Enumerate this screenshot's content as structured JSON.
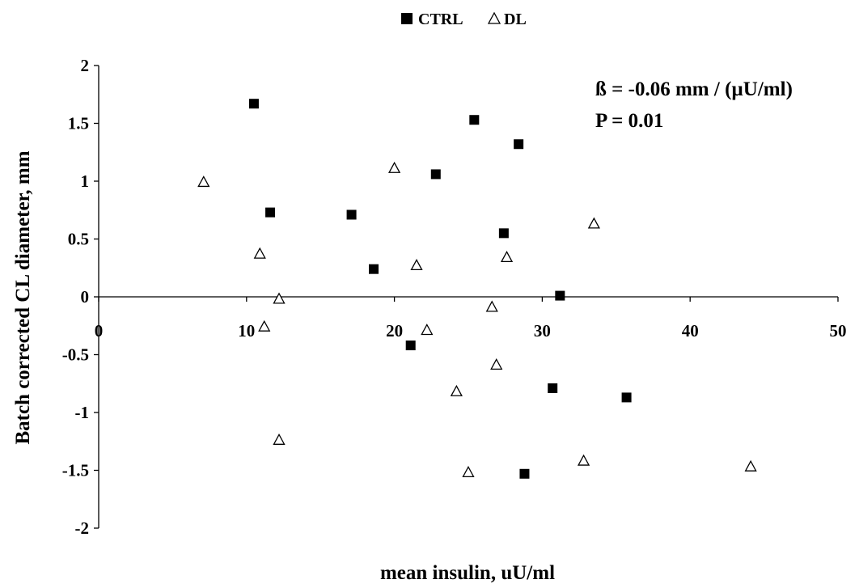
{
  "chart_data": {
    "type": "scatter",
    "xlabel": "mean insulin, uU/ml",
    "ylabel": "Batch corrected CL diameter, mm",
    "xlim": [
      0,
      50
    ],
    "ylim": [
      -2,
      2
    ],
    "x_ticks": [
      "0",
      "10",
      "20",
      "30",
      "40",
      "50"
    ],
    "y_ticks": [
      "2",
      "1.5",
      "1",
      "0.5",
      "0",
      "-0.5",
      "-1",
      "-1.5",
      "-2"
    ],
    "grid": false,
    "legend_position": "top-center",
    "annotations": [
      "ß = -0.06 mm / (µU/ml)",
      "P = 0.01"
    ],
    "series": [
      {
        "name": "CTRL",
        "marker": "filled-square",
        "color": "#000000",
        "points": [
          {
            "x": 10.5,
            "y": 1.67
          },
          {
            "x": 11.6,
            "y": 0.73
          },
          {
            "x": 17.1,
            "y": 0.71
          },
          {
            "x": 18.6,
            "y": 0.24
          },
          {
            "x": 21.1,
            "y": -0.42
          },
          {
            "x": 22.8,
            "y": 1.06
          },
          {
            "x": 25.4,
            "y": 1.53
          },
          {
            "x": 27.4,
            "y": 0.55
          },
          {
            "x": 28.4,
            "y": 1.32
          },
          {
            "x": 28.8,
            "y": -1.53
          },
          {
            "x": 30.7,
            "y": -0.79
          },
          {
            "x": 31.2,
            "y": 0.01
          },
          {
            "x": 35.7,
            "y": -0.87
          }
        ]
      },
      {
        "name": "DL",
        "marker": "open-triangle",
        "color": "#000000",
        "points": [
          {
            "x": 7.1,
            "y": 0.99
          },
          {
            "x": 10.9,
            "y": 0.37
          },
          {
            "x": 11.2,
            "y": -0.26
          },
          {
            "x": 12.2,
            "y": -0.02
          },
          {
            "x": 12.2,
            "y": -1.24
          },
          {
            "x": 20.0,
            "y": 1.11
          },
          {
            "x": 21.5,
            "y": 0.27
          },
          {
            "x": 22.2,
            "y": -0.29
          },
          {
            "x": 24.2,
            "y": -0.82
          },
          {
            "x": 25.0,
            "y": -1.52
          },
          {
            "x": 26.6,
            "y": -0.09
          },
          {
            "x": 26.9,
            "y": -0.59
          },
          {
            "x": 27.6,
            "y": 0.34
          },
          {
            "x": 32.8,
            "y": -1.42
          },
          {
            "x": 33.5,
            "y": 0.63
          },
          {
            "x": 44.1,
            "y": -1.47
          }
        ]
      }
    ]
  }
}
